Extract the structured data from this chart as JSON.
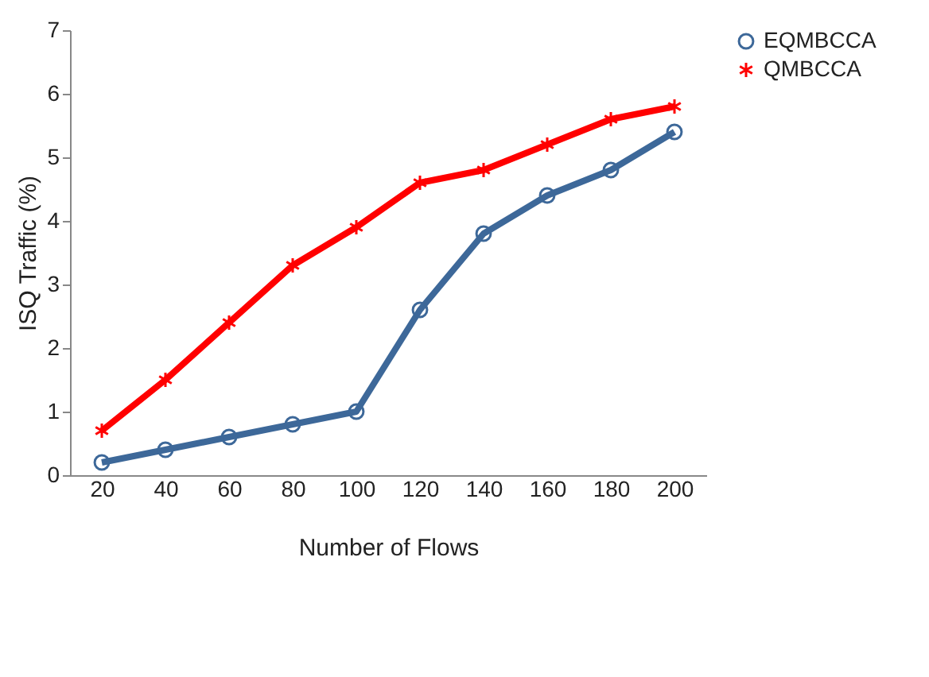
{
  "chart_data": {
    "type": "line",
    "xlabel": "Number of Flows",
    "ylabel": "ISQ Traffic (%)",
    "categories": [
      "20",
      "40",
      "60",
      "80",
      "100",
      "120",
      "140",
      "160",
      "180",
      "200"
    ],
    "series": [
      {
        "name": "EQMBCCA",
        "color": "#3d6899",
        "marker": "circle",
        "values": [
          0.2,
          0.4,
          0.6,
          0.8,
          1.0,
          2.6,
          3.8,
          4.4,
          4.8,
          5.4
        ]
      },
      {
        "name": "QMBCCA",
        "color": "#ff0000",
        "marker": "cross",
        "values": [
          0.7,
          1.5,
          2.4,
          3.3,
          3.9,
          4.6,
          4.8,
          5.2,
          5.6,
          5.8
        ]
      }
    ],
    "ylim": [
      0,
      7
    ],
    "yticks": [
      0,
      1,
      2,
      3,
      4,
      5,
      6,
      7
    ],
    "grid": false,
    "legend": "top right",
    "line_style": "solid"
  }
}
